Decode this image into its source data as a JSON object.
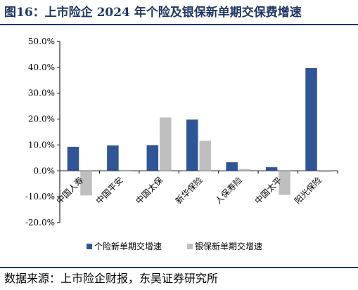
{
  "title": "图16：上市险企 2024 年个险及银保新单期交保费增速",
  "source": "数据来源：上市险企财报，东吴证券研究所",
  "chart_data": {
    "type": "bar",
    "categories": [
      "中国人寿",
      "中国平安",
      "中国太保",
      "新华保险",
      "人保寿险",
      "中国太平",
      "阳光保险"
    ],
    "series": [
      {
        "name": "个险新单期交增速",
        "color": "#2f5597",
        "values": [
          9.3,
          9.8,
          9.9,
          19.8,
          3.3,
          1.4,
          39.7
        ]
      },
      {
        "name": "银保新单期交增速",
        "color": "#bfbfbf",
        "values": [
          -9.5,
          0.4,
          20.6,
          11.6,
          0.7,
          -9.3,
          -0.5
        ]
      }
    ],
    "ylim": [
      -20,
      50
    ],
    "yticks": [
      -20,
      -10,
      0,
      10,
      20,
      30,
      40,
      50
    ],
    "ytick_labels": [
      "-20.0%",
      "-10.0%",
      "0.0%",
      "10.0%",
      "20.0%",
      "30.0%",
      "40.0%",
      "50.0%"
    ],
    "legend_position": "bottom",
    "grid": false
  }
}
